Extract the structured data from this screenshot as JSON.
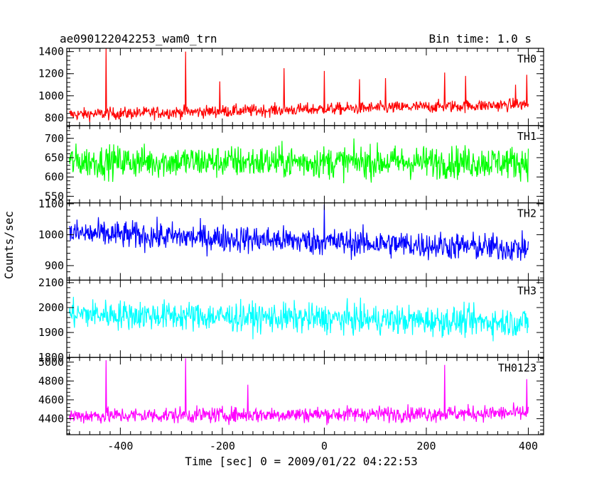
{
  "chart_data": {
    "type": "line",
    "title": "ae090122042253_wam0_trn",
    "bin_time_label": "Bin time: 1.0 s",
    "xlabel": "Time [sec] 0 = 2009/01/22 04:22:53",
    "ylabel": "Counts/sec",
    "xlim": [
      -505,
      430
    ],
    "x_ticks": [
      -400,
      -200,
      0,
      200,
      400
    ],
    "x_range_data": [
      -500,
      400
    ],
    "panels": [
      {
        "name": "TH0",
        "color": "#ff0000",
        "ylim": [
          730,
          1430
        ],
        "y_ticks": [
          800,
          1000,
          1200,
          1400
        ],
        "baseline_start": 830,
        "baseline_end": 920,
        "noise": 40,
        "spikes": [
          {
            "x": -428,
            "y": 1430
          },
          {
            "x": -272,
            "y": 1400
          },
          {
            "x": -205,
            "y": 1130
          },
          {
            "x": -79,
            "y": 1250
          },
          {
            "x": 0,
            "y": 1225
          },
          {
            "x": 69,
            "y": 1150
          },
          {
            "x": 120,
            "y": 1160
          },
          {
            "x": 236,
            "y": 1210
          },
          {
            "x": 277,
            "y": 1180
          },
          {
            "x": 375,
            "y": 1100
          },
          {
            "x": 397,
            "y": 1190
          }
        ]
      },
      {
        "name": "TH1",
        "color": "#00ff00",
        "ylim": [
          533,
          733
        ],
        "y_ticks": [
          550,
          600,
          650,
          700
        ],
        "baseline_start": 640,
        "baseline_end": 638,
        "noise": 30,
        "spikes": []
      },
      {
        "name": "TH2",
        "color": "#0000ff",
        "ylim": [
          853,
          1103
        ],
        "y_ticks": [
          900,
          1000,
          1100
        ],
        "baseline_start": 1005,
        "baseline_end": 955,
        "noise": 32,
        "spikes": [
          {
            "x": 0,
            "y": 1098
          }
        ]
      },
      {
        "name": "TH3",
        "color": "#00ffff",
        "ylim": [
          1800,
          2110
        ],
        "y_ticks": [
          1800,
          1900,
          2000,
          2100
        ],
        "baseline_start": 1975,
        "baseline_end": 1940,
        "noise": 42,
        "spikes": []
      },
      {
        "name": "TH0123",
        "color": "#ff00ff",
        "ylim": [
          4230,
          5050
        ],
        "y_ticks": [
          4400,
          4600,
          4800,
          5000
        ],
        "baseline_start": 4430,
        "baseline_end": 4460,
        "noise": 60,
        "spikes": [
          {
            "x": -428,
            "y": 5020
          },
          {
            "x": -272,
            "y": 5040
          },
          {
            "x": -150,
            "y": 4760
          },
          {
            "x": 236,
            "y": 4970
          },
          {
            "x": 397,
            "y": 4820
          }
        ]
      }
    ]
  }
}
